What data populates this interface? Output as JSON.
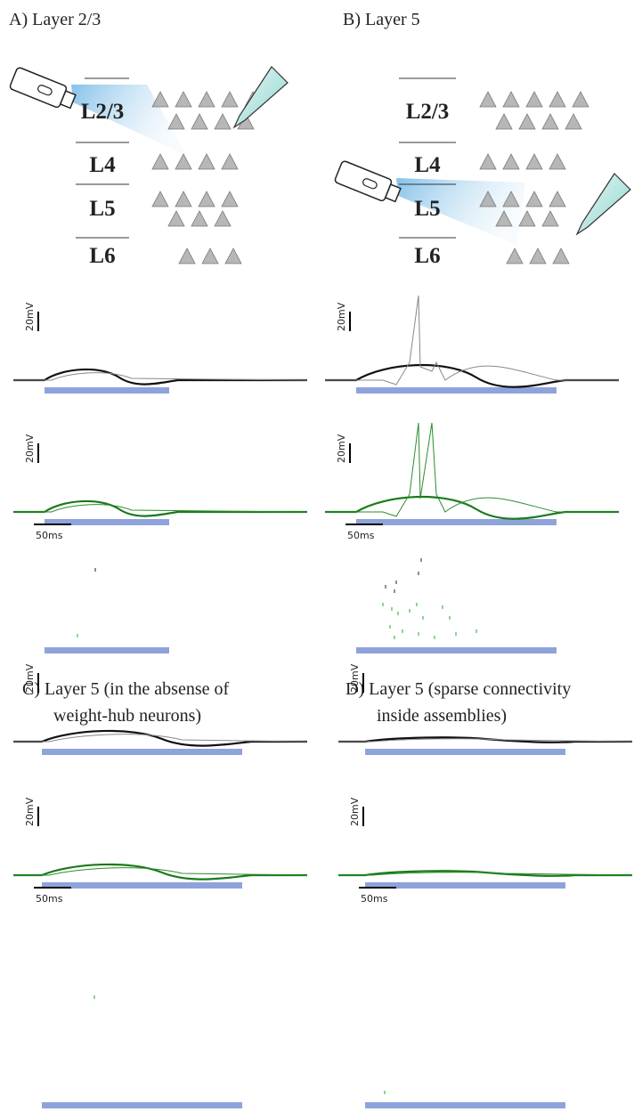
{
  "panels": [
    {
      "title": [
        "A) Layer 2/3"
      ],
      "layers": [
        "L2/3",
        "L4",
        "L5",
        "L6"
      ],
      "voltage_scale": [
        "20mV",
        "20mV"
      ],
      "time_scale": "50ms"
    },
    {
      "title": [
        "B) Layer 5"
      ],
      "layers": [
        "L2/3",
        "L4",
        "L5",
        "L6"
      ],
      "voltage_scale": [
        "20mV",
        "20mV"
      ],
      "time_scale": "50ms"
    },
    {
      "title": [
        "C) Layer 5 (in the absense of",
        "weight-hub neurons)"
      ],
      "voltage_scale": [
        "20mV",
        "20mV"
      ],
      "time_scale": "50ms"
    },
    {
      "title": [
        "D) Layer 5 (sparse connectivity",
        "inside assemblies)"
      ],
      "voltage_scale": [
        "20mV",
        "20mV"
      ],
      "time_scale": "50ms"
    }
  ]
}
